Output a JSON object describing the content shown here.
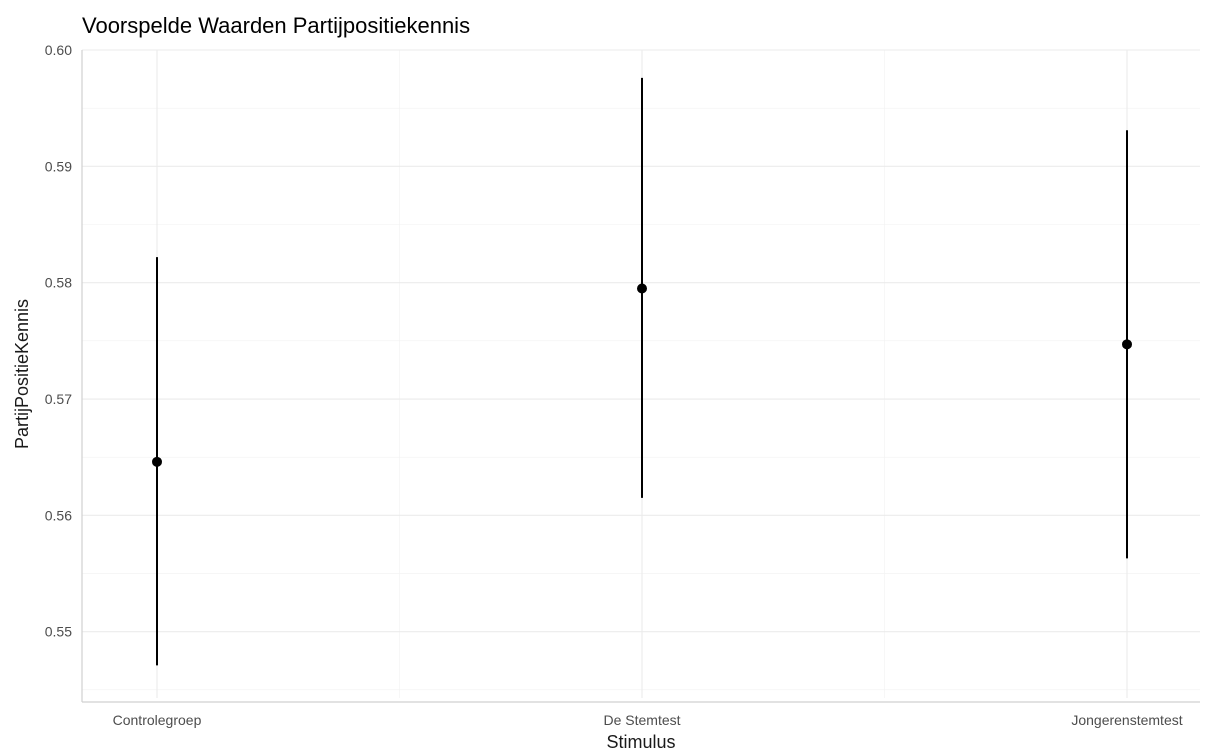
{
  "chart_data": {
    "type": "scatter",
    "title": "Voorspelde Waarden Partijpositiekennis",
    "xlabel": "Stimulus",
    "ylabel": "PartijPositieKennis",
    "categories": [
      "Controlegroep",
      "De Stemtest",
      "Jongerenstemtest"
    ],
    "series": [
      {
        "estimate": [
          0.5646,
          0.5795,
          0.5747
        ],
        "lower": [
          0.5471,
          0.5615,
          0.5563
        ],
        "upper": [
          0.5822,
          0.5976,
          0.5931
        ]
      }
    ],
    "ylim": [
      0.5443,
      0.6
    ],
    "y_ticks": [
      0.55,
      0.56,
      0.57,
      0.58,
      0.59,
      0.6
    ],
    "y_tick_labels": [
      "0.55",
      "0.56",
      "0.57",
      "0.58",
      "0.59",
      "0.60"
    ],
    "grid": true,
    "colors": {
      "marks": "#000000",
      "grid": "#ebebeb",
      "ticks": "#4d4d4d"
    }
  }
}
